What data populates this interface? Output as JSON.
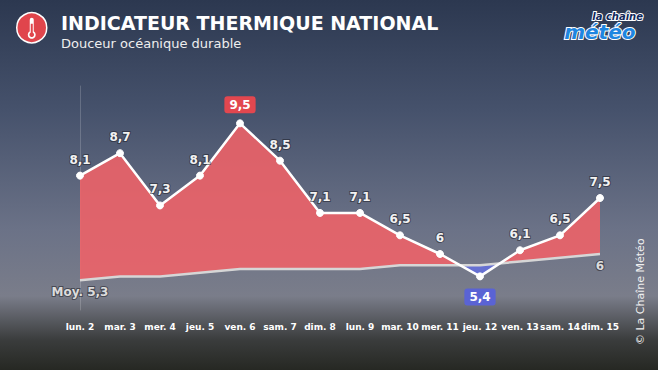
{
  "logo": [
    "la chaîne",
    "météo"
  ],
  "credit": "© La Chaîne Météo",
  "chart_data": {
    "type": "line",
    "title": "INDICATEUR THERMIQUE NATIONAL",
    "subtitle": "Douceur océanique durable",
    "categories": [
      "lun. 2",
      "mar. 3",
      "mer. 4",
      "jeu. 5",
      "ven. 6",
      "sam. 7",
      "dim. 8",
      "lun. 9",
      "mar. 10",
      "mer. 11",
      "jeu. 12",
      "ven. 13",
      "sam. 14",
      "dim. 15"
    ],
    "series": [
      {
        "color": "#ffffff",
        "values": [
          8.1,
          8.7,
          7.3,
          8.1,
          9.5,
          8.5,
          7.1,
          7.1,
          6.5,
          6,
          5.4,
          6.1,
          6.5,
          7.5
        ],
        "value_labels": [
          "8,1",
          "8,7",
          "7,3",
          "8,1",
          "9,5",
          "8,5",
          "7,1",
          "7,1",
          "6,5",
          "6",
          "5,4",
          "6,1",
          "6,5",
          "7,5"
        ]
      },
      {
        "color": "#d6d6d6",
        "values": [
          5.3,
          5.4,
          5.4,
          5.5,
          5.6,
          5.6,
          5.6,
          5.6,
          5.7,
          5.7,
          5.7,
          5.8,
          5.9,
          6.0
        ],
        "value_labels": [
          "Moy. 5,3",
          null,
          null,
          null,
          null,
          null,
          null,
          null,
          null,
          null,
          null,
          null,
          null,
          "6"
        ]
      }
    ],
    "ylim": [
      4.5,
      10.5
    ],
    "tick_labels": "x",
    "grid": false,
    "data_labels": true
  }
}
